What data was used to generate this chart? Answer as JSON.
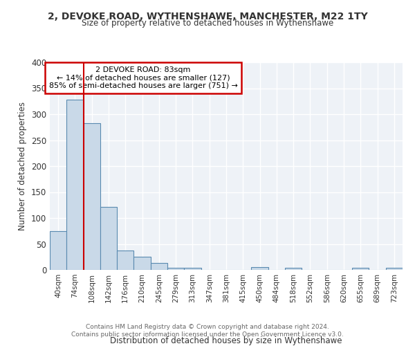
{
  "title1": "2, DEVOKE ROAD, WYTHENSHAWE, MANCHESTER, M22 1TY",
  "title2": "Size of property relative to detached houses in Wythenshawe",
  "xlabel": "Distribution of detached houses by size in Wythenshawe",
  "ylabel": "Number of detached properties",
  "categories": [
    "40sqm",
    "74sqm",
    "108sqm",
    "142sqm",
    "176sqm",
    "210sqm",
    "245sqm",
    "279sqm",
    "313sqm",
    "347sqm",
    "381sqm",
    "415sqm",
    "450sqm",
    "484sqm",
    "518sqm",
    "552sqm",
    "586sqm",
    "620sqm",
    "655sqm",
    "689sqm",
    "723sqm"
  ],
  "values": [
    75,
    328,
    283,
    122,
    37,
    25,
    13,
    4,
    4,
    0,
    0,
    0,
    5,
    0,
    4,
    0,
    0,
    0,
    4,
    0,
    4
  ],
  "bar_color": "#c9d9e8",
  "bar_edge_color": "#5a8ab0",
  "red_line_x": 1.5,
  "annotation_title": "2 DEVOKE ROAD: 83sqm",
  "annotation_line1": "← 14% of detached houses are smaller (127)",
  "annotation_line2": "85% of semi-detached houses are larger (751) →",
  "annotation_box_color": "#ffffff",
  "annotation_box_edge": "#cc0000",
  "footer1": "Contains HM Land Registry data © Crown copyright and database right 2024.",
  "footer2": "Contains public sector information licensed under the Open Government Licence v3.0.",
  "ylim": [
    0,
    400
  ],
  "background_color": "#eef2f7"
}
